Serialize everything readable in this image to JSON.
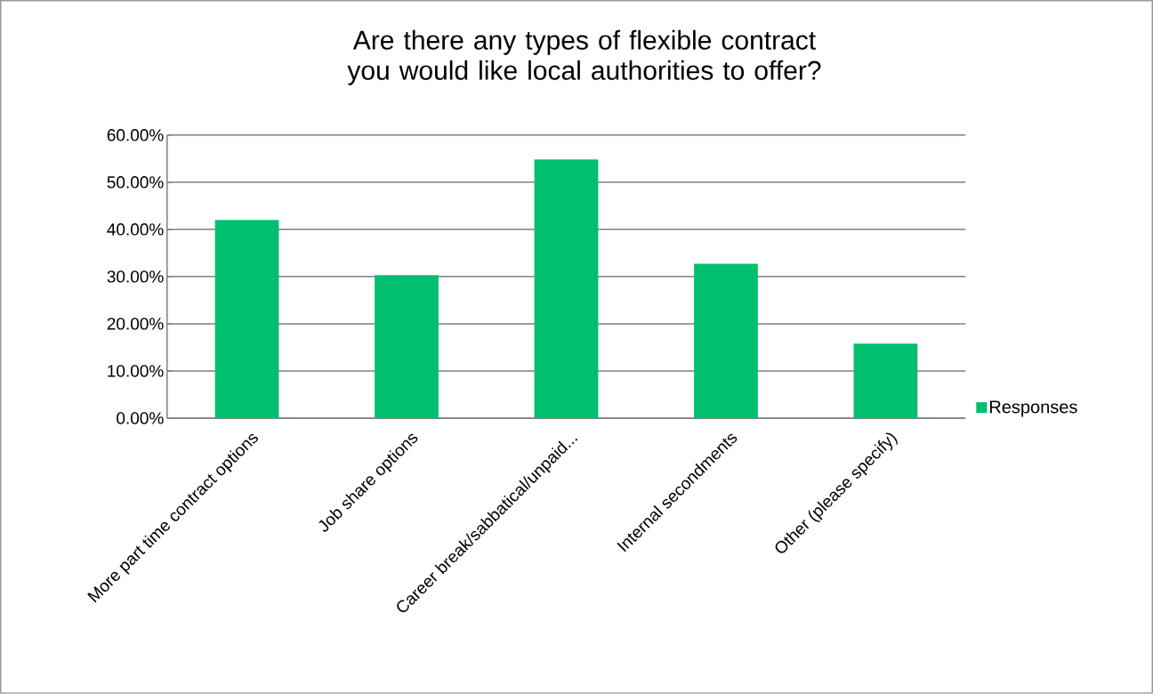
{
  "chart_data": {
    "type": "bar",
    "title": "Are there any types of flexible contract you would like local authorities to offer?",
    "categories": [
      "More part time contract options",
      "Job share options",
      "Career break/sabbatical/unpaid...",
      "Internal secondments",
      "Other (please specify)"
    ],
    "series": [
      {
        "name": "Responses",
        "color": "#00bf6f",
        "values": [
          42.0,
          30.3,
          54.8,
          32.7,
          15.8
        ]
      }
    ],
    "ylim": [
      0,
      60
    ],
    "yticks": [
      {
        "value": 0,
        "label": "0.00%"
      },
      {
        "value": 10,
        "label": "10.00%"
      },
      {
        "value": 20,
        "label": "20.00%"
      },
      {
        "value": 30,
        "label": "30.00%"
      },
      {
        "value": 40,
        "label": "40.00%"
      },
      {
        "value": 50,
        "label": "50.00%"
      },
      {
        "value": 60,
        "label": "60.00%"
      }
    ],
    "grid": "y",
    "legend": "right"
  }
}
